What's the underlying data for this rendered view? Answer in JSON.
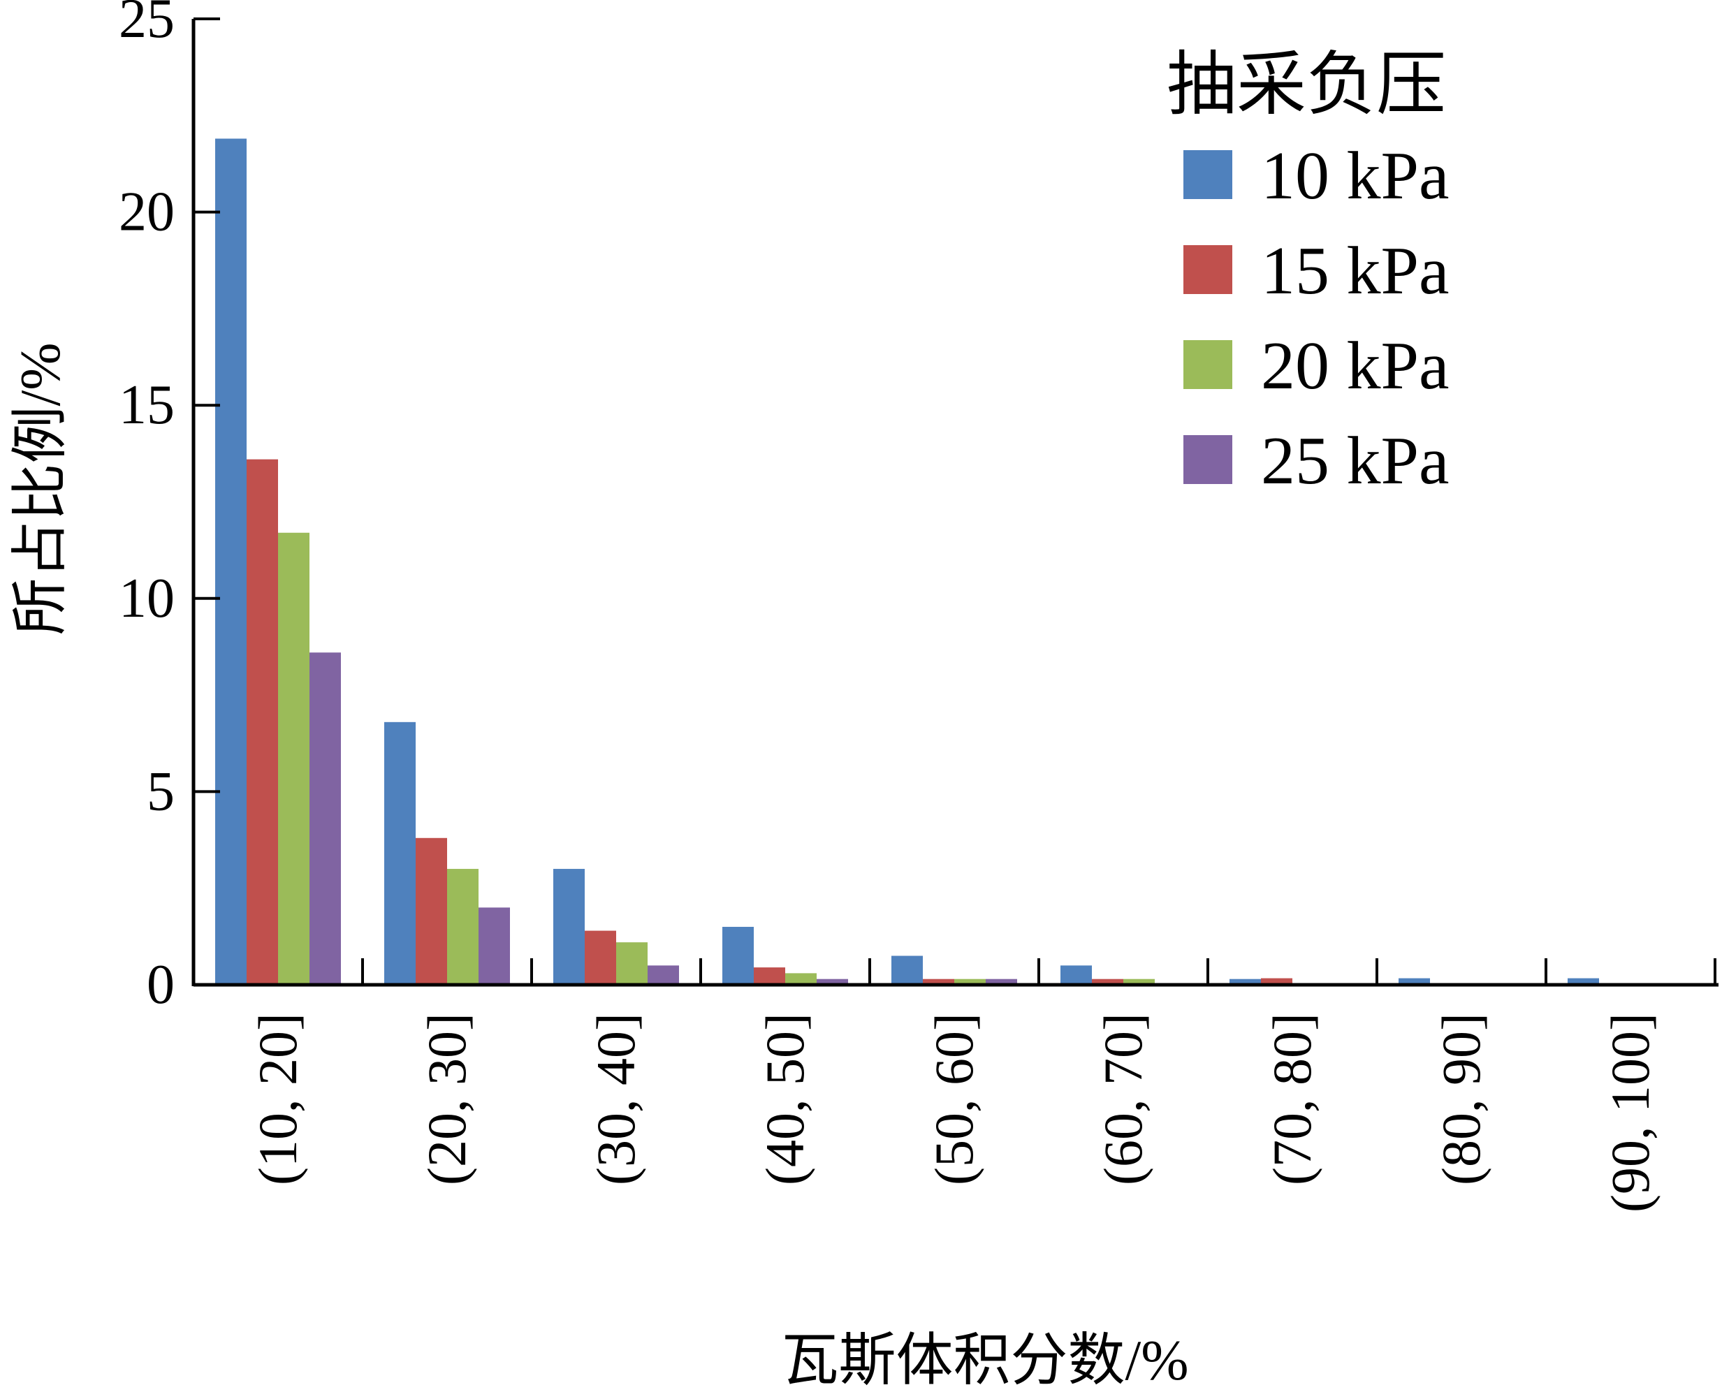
{
  "chart_data": {
    "type": "bar",
    "title": "",
    "xlabel": "瓦斯体积分数/%",
    "ylabel": "所占比例/%",
    "ylim": [
      0,
      25
    ],
    "yticks": [
      0,
      5,
      10,
      15,
      20,
      25
    ],
    "grid": false,
    "categories": [
      "(10, 20]",
      "(20, 30]",
      "(30, 40]",
      "(40, 50]",
      "(50, 60]",
      "(60, 70]",
      "(70, 80]",
      "(80, 90]",
      "(90, 100]"
    ],
    "legend": {
      "title": "抽采负压",
      "placement": "top-right"
    },
    "series": [
      {
        "name": "10 kPa",
        "color": "#4F81BD",
        "values": [
          21.9,
          6.8,
          3.0,
          1.5,
          0.75,
          0.5,
          0.15,
          0.17,
          0.17
        ]
      },
      {
        "name": "15 kPa",
        "color": "#C0504D",
        "values": [
          13.6,
          3.8,
          1.4,
          0.45,
          0.15,
          0.15,
          0.17,
          0,
          0
        ]
      },
      {
        "name": "20 kPa",
        "color": "#9BBB59",
        "values": [
          11.7,
          3.0,
          1.1,
          0.3,
          0.15,
          0.15,
          0,
          0,
          0
        ]
      },
      {
        "name": "25 kPa",
        "color": "#8064A2",
        "values": [
          8.6,
          2.0,
          0.5,
          0.15,
          0.15,
          0,
          0,
          0,
          0
        ]
      }
    ]
  }
}
